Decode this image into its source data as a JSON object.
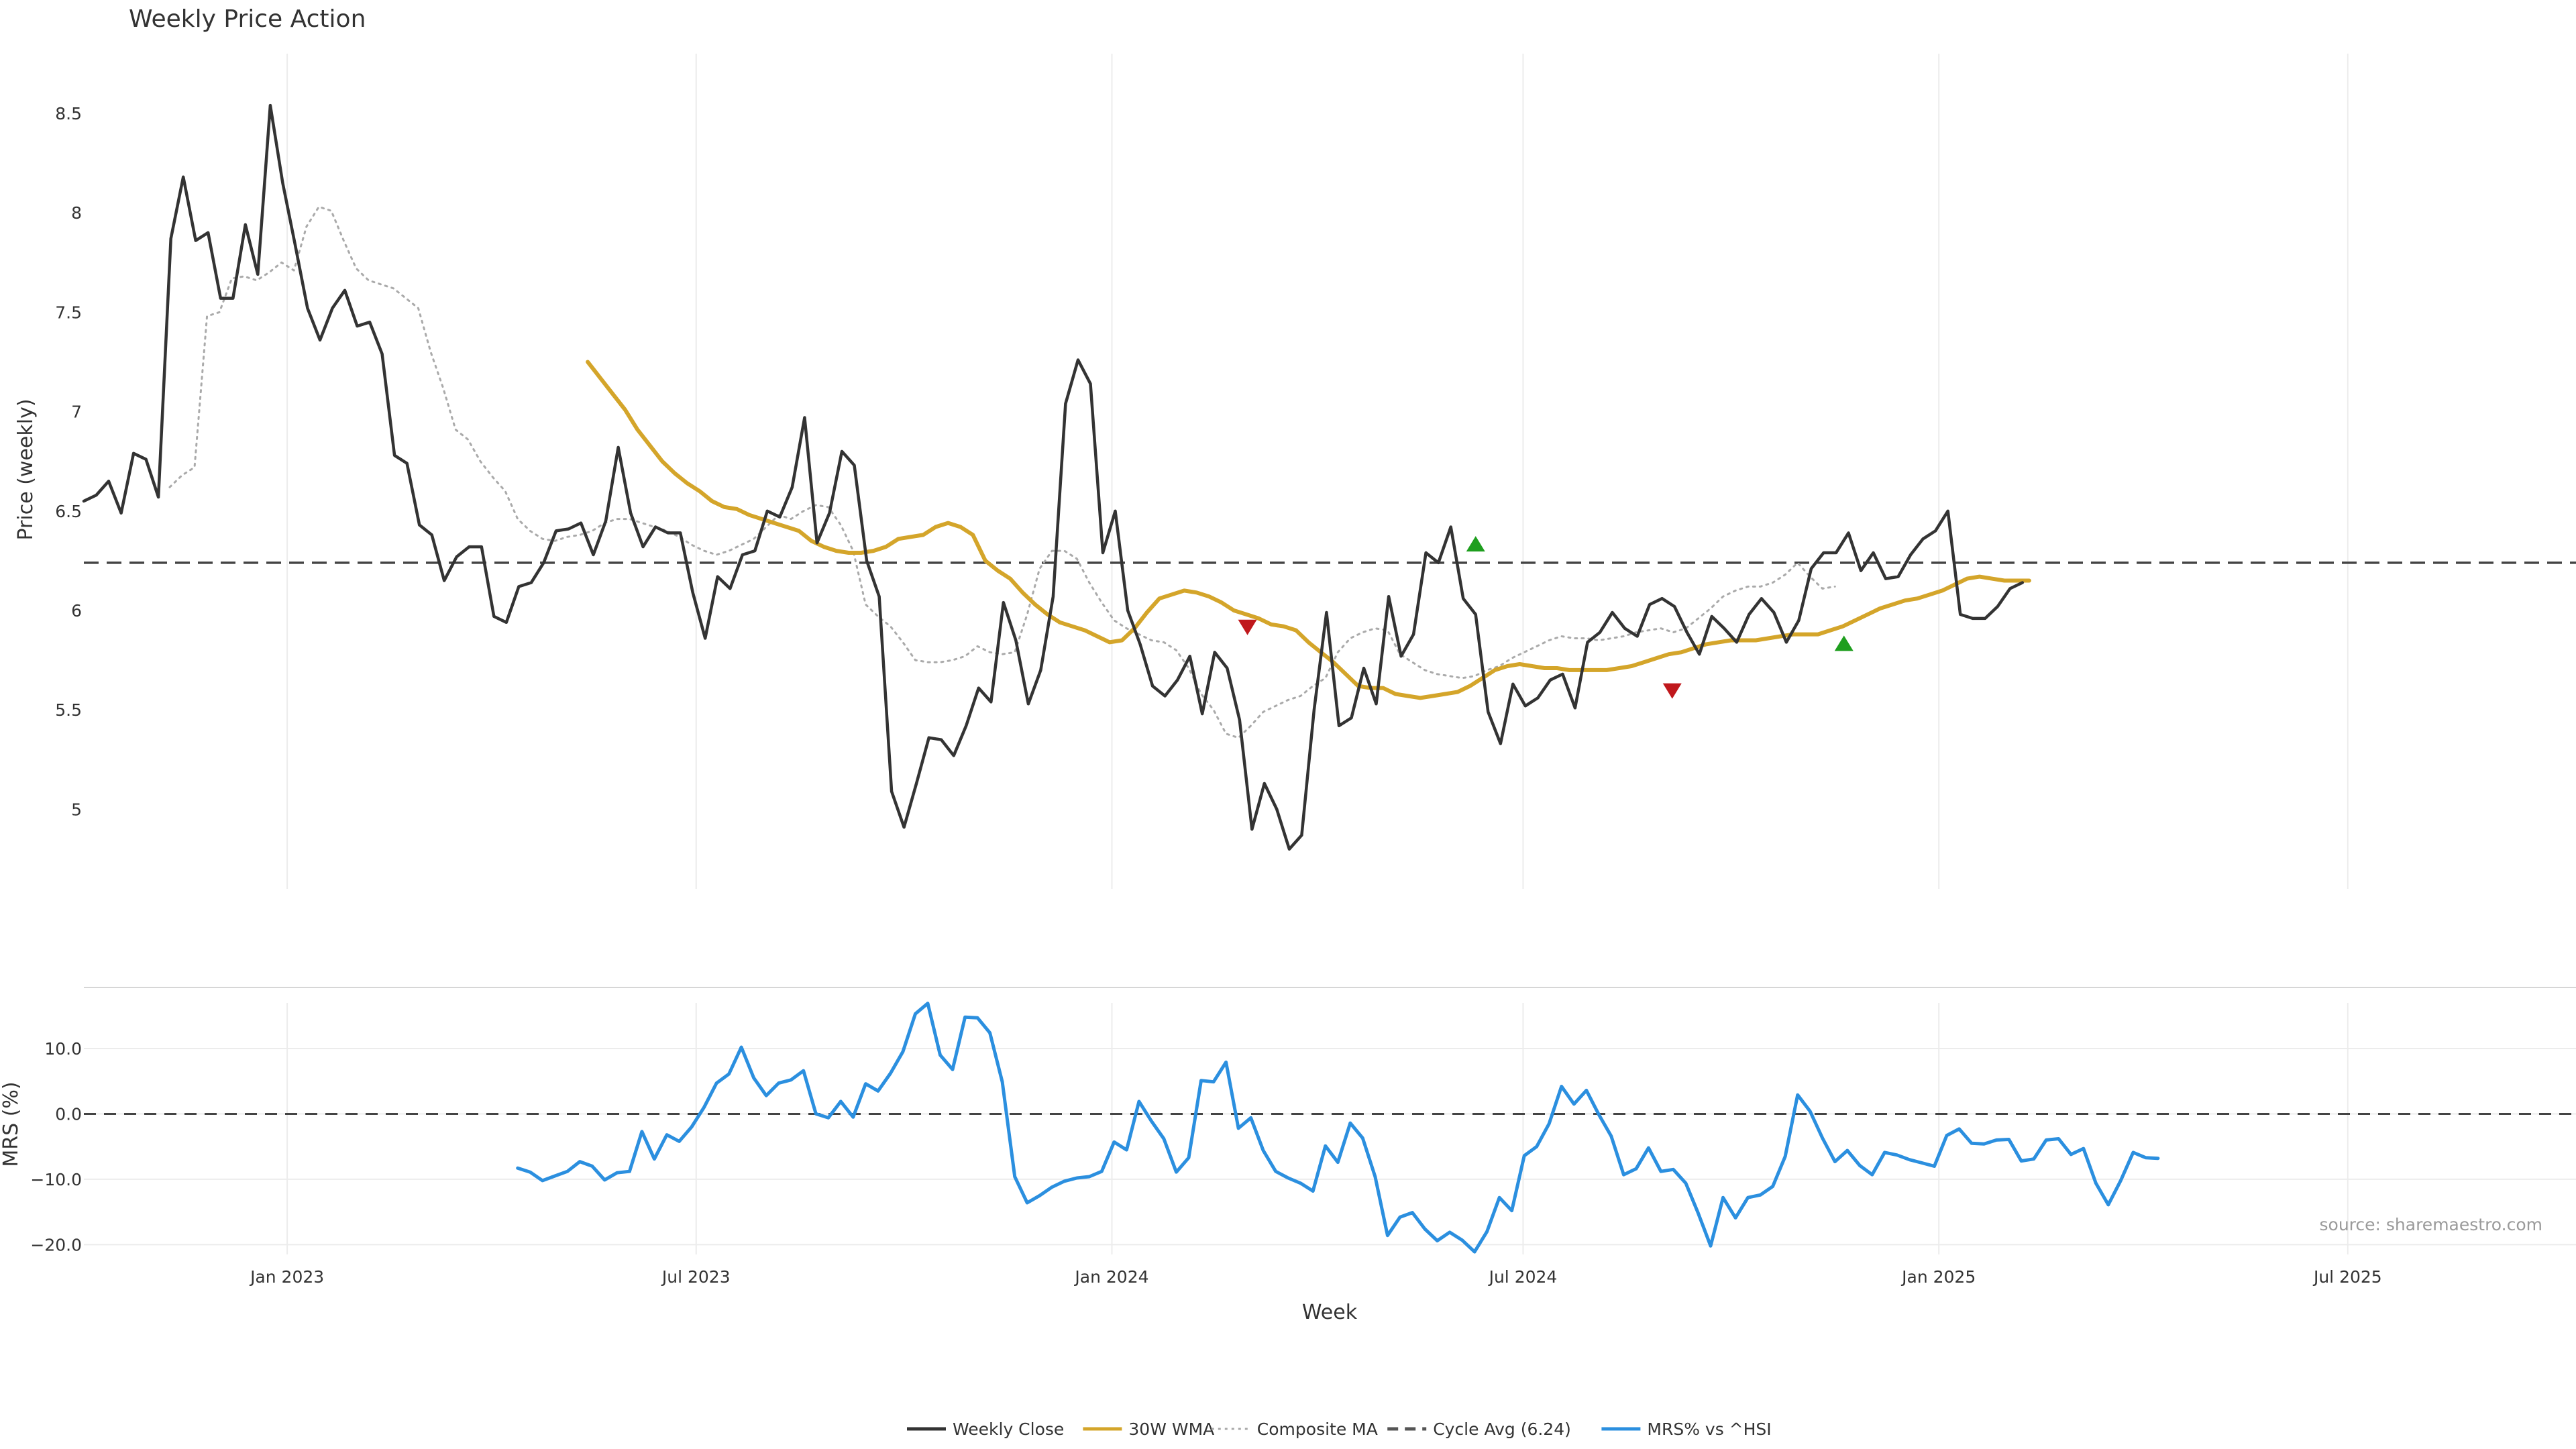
{
  "chart_data": [
    {
      "type": "line",
      "title": "Weekly Price Action",
      "ylabel": "Price (weekly)",
      "ylim": [
        4.6,
        8.8
      ],
      "yticks": [
        5,
        5.5,
        6,
        6.5,
        7,
        7.5,
        8,
        8.5
      ],
      "x_range": [
        "2022-10-03",
        "2025-10-10"
      ],
      "grid": "vertical",
      "reference_line": {
        "name": "Cycle Avg (6.24)",
        "value": 6.24
      },
      "series": [
        {
          "name": "Weekly Close",
          "color": "#333333",
          "start": "2022-10-03",
          "step_days": 5.5,
          "values": [
            6.55,
            6.58,
            6.65,
            6.49,
            6.79,
            6.76,
            6.57,
            7.87,
            8.18,
            7.86,
            7.9,
            7.57,
            7.57,
            7.94,
            7.69,
            8.54,
            8.15,
            7.84,
            7.52,
            7.36,
            7.52,
            7.61,
            7.43,
            7.45,
            7.29,
            6.78,
            6.74,
            6.43,
            6.38,
            6.15,
            6.27,
            6.32,
            6.32,
            5.97,
            5.94,
            6.12,
            6.14,
            6.24,
            6.4,
            6.41,
            6.44,
            6.28,
            6.45,
            6.82,
            6.49,
            6.32,
            6.42,
            6.39,
            6.39,
            6.09,
            5.86,
            6.17,
            6.11,
            6.28,
            6.3,
            6.5,
            6.47,
            6.62,
            6.97,
            6.34,
            6.49,
            6.8,
            6.73,
            6.25,
            6.07,
            5.09,
            4.91,
            5.13,
            5.36,
            5.35,
            5.27,
            5.42,
            5.61,
            5.54,
            6.04,
            5.85,
            5.53,
            5.7,
            6.07,
            7.04,
            7.26,
            7.14,
            6.29,
            6.5,
            6.0,
            5.83,
            5.62,
            5.57,
            5.65,
            5.77,
            5.48,
            5.79,
            5.71,
            5.45,
            4.9,
            5.13,
            5.0,
            4.8,
            4.87,
            5.5,
            5.99,
            5.42,
            5.46,
            5.71,
            5.53,
            6.07,
            5.77,
            5.88,
            6.29,
            6.24,
            6.42,
            6.06,
            5.98,
            5.49,
            5.33,
            5.63,
            5.52,
            5.56,
            5.65,
            5.68,
            5.51,
            5.84,
            5.89,
            5.99,
            5.91,
            5.87,
            6.03,
            6.06,
            6.02,
            5.89,
            5.78,
            5.97,
            5.91,
            5.84,
            5.98,
            6.06,
            5.99,
            5.84,
            5.95,
            6.21,
            6.29,
            6.29,
            6.39,
            6.2,
            6.29,
            6.16,
            6.17,
            6.28,
            6.36,
            6.4,
            6.5,
            5.98,
            5.96,
            5.96,
            6.02,
            6.11,
            6.14
          ]
        },
        {
          "name": "30W WMA",
          "color": "#d4a52a",
          "start": "2023-05-14",
          "step_days": 5.5,
          "values": [
            7.25,
            7.17,
            7.09,
            7.01,
            6.91,
            6.83,
            6.75,
            6.69,
            6.64,
            6.6,
            6.55,
            6.52,
            6.51,
            6.48,
            6.46,
            6.44,
            6.42,
            6.4,
            6.35,
            6.32,
            6.3,
            6.29,
            6.29,
            6.3,
            6.32,
            6.36,
            6.37,
            6.38,
            6.42,
            6.44,
            6.42,
            6.38,
            6.25,
            6.2,
            6.16,
            6.09,
            6.03,
            5.98,
            5.94,
            5.92,
            5.9,
            5.87,
            5.84,
            5.85,
            5.91,
            5.99,
            6.06,
            6.08,
            6.1,
            6.09,
            6.07,
            6.04,
            6.0,
            5.98,
            5.96,
            5.93,
            5.92,
            5.9,
            5.84,
            5.79,
            5.74,
            5.68,
            5.62,
            5.61,
            5.61,
            5.58,
            5.57,
            5.56,
            5.57,
            5.58,
            5.59,
            5.62,
            5.66,
            5.7,
            5.72,
            5.73,
            5.72,
            5.71,
            5.71,
            5.7,
            5.7,
            5.7,
            5.7,
            5.71,
            5.72,
            5.74,
            5.76,
            5.78,
            5.79,
            5.81,
            5.83,
            5.84,
            5.85,
            5.85,
            5.85,
            5.86,
            5.87,
            5.88,
            5.88,
            5.88,
            5.9,
            5.92,
            5.95,
            5.98,
            6.01,
            6.03,
            6.05,
            6.06,
            6.08,
            6.1,
            6.13,
            6.16,
            6.17,
            6.16,
            6.15,
            6.15,
            6.15
          ]
        },
        {
          "name": "Composite MA",
          "color": "#aaaaaa",
          "start": "2022-11-10",
          "step_days": 5.5,
          "values": [
            6.62,
            6.68,
            6.72,
            7.48,
            7.5,
            7.67,
            7.68,
            7.66,
            7.7,
            7.75,
            7.71,
            7.93,
            8.03,
            8.01,
            7.86,
            7.72,
            7.66,
            7.64,
            7.62,
            7.57,
            7.52,
            7.3,
            7.12,
            6.91,
            6.86,
            6.75,
            6.67,
            6.6,
            6.46,
            6.4,
            6.36,
            6.35,
            6.37,
            6.38,
            6.4,
            6.44,
            6.46,
            6.46,
            6.44,
            6.42,
            6.4,
            6.37,
            6.33,
            6.3,
            6.28,
            6.3,
            6.33,
            6.36,
            6.42,
            6.48,
            6.46,
            6.5,
            6.53,
            6.52,
            6.43,
            6.3,
            6.03,
            5.97,
            5.92,
            5.84,
            5.75,
            5.74,
            5.74,
            5.75,
            5.77,
            5.82,
            5.79,
            5.78,
            5.79,
            5.98,
            6.21,
            6.3,
            6.3,
            6.26,
            6.14,
            6.04,
            5.95,
            5.91,
            5.88,
            5.85,
            5.84,
            5.8,
            5.71,
            5.58,
            5.5,
            5.38,
            5.36,
            5.42,
            5.49,
            5.52,
            5.55,
            5.57,
            5.62,
            5.66,
            5.79,
            5.86,
            5.89,
            5.91,
            5.9,
            5.78,
            5.74,
            5.7,
            5.68,
            5.67,
            5.66,
            5.67,
            5.7,
            5.72,
            5.76,
            5.79,
            5.82,
            5.85,
            5.87,
            5.86,
            5.86,
            5.85,
            5.86,
            5.87,
            5.89,
            5.9,
            5.91,
            5.89,
            5.91,
            5.96,
            6.01,
            6.07,
            6.1,
            6.12,
            6.12,
            6.14,
            6.18,
            6.24,
            6.17,
            6.11,
            6.12
          ]
        }
      ],
      "signals": [
        {
          "date": "2024-03-01",
          "value": 5.92,
          "direction": "down",
          "color": "#c0181c"
        },
        {
          "date": "2024-06-10",
          "value": 6.33,
          "direction": "up",
          "color": "#1e9e1e"
        },
        {
          "date": "2024-09-05",
          "value": 5.6,
          "direction": "down",
          "color": "#c0181c"
        },
        {
          "date": "2024-11-20",
          "value": 5.83,
          "direction": "up",
          "color": "#1e9e1e"
        }
      ]
    },
    {
      "type": "line",
      "ylabel": "MRS (%)",
      "xlabel": "Week",
      "ylim": [
        -21.5,
        18
      ],
      "yticks": [
        "10.0",
        "0.0",
        "−10.0",
        "−20.0"
      ],
      "ytick_values": [
        10,
        0,
        -10,
        -20
      ],
      "x_range": [
        "2022-10-03",
        "2025-10-10"
      ],
      "xticks": [
        "Jan 2023",
        "Jul 2023",
        "Jan 2024",
        "Jul 2024",
        "Jan 2025",
        "Jul 2025"
      ],
      "xtick_dates": [
        "2023-01-01",
        "2023-07-01",
        "2024-01-01",
        "2024-07-01",
        "2025-01-01",
        "2025-07-01"
      ],
      "reference_line": {
        "value": 0
      },
      "series": [
        {
          "name": "MRS% vs ^HSI",
          "color": "#2b8fdf",
          "start": "2023-04-13",
          "step_days": 5.5,
          "values": [
            -8.3,
            -8.9,
            -10.2,
            -9.5,
            -8.8,
            -7.3,
            -8.0,
            -10.1,
            -9.0,
            -8.8,
            -2.7,
            -6.9,
            -3.2,
            -4.2,
            -2.0,
            1.0,
            4.7,
            6.1,
            10.2,
            5.5,
            2.8,
            4.7,
            5.2,
            6.6,
            0.0,
            -0.6,
            1.9,
            -0.5,
            4.6,
            3.5,
            6.2,
            9.5,
            15.3,
            16.9,
            9.0,
            6.8,
            14.8,
            14.7,
            12.4,
            4.9,
            -9.6,
            -13.6,
            -12.5,
            -11.2,
            -10.3,
            -9.8,
            -9.6,
            -8.8,
            -4.3,
            -5.5,
            1.9,
            -1.1,
            -3.8,
            -8.9,
            -6.7,
            5.1,
            4.9,
            7.9,
            -2.2,
            -0.6,
            -5.6,
            -8.8,
            -9.8,
            -10.6,
            -11.8,
            -4.9,
            -7.4,
            -1.4,
            -3.7,
            -9.6,
            -18.6,
            -15.8,
            -15.1,
            -17.6,
            -19.4,
            -18.1,
            -19.3,
            -21.1,
            -18.0,
            -12.8,
            -14.8,
            -6.4,
            -5.0,
            -1.5,
            4.2,
            1.5,
            3.6,
            -0.1,
            -3.4,
            -9.3,
            -8.4,
            -5.2,
            -8.8,
            -8.5,
            -10.6,
            -15.2,
            -20.2,
            -12.8,
            -15.9,
            -12.8,
            -12.4,
            -11.1,
            -6.5,
            2.9,
            0.4,
            -3.7,
            -7.3,
            -5.6,
            -7.9,
            -9.3,
            -5.9,
            -6.3,
            -7.0,
            -7.5,
            -8.0,
            -3.3,
            -2.3,
            -4.5,
            -4.6,
            -4.0,
            -3.9,
            -7.2,
            -6.9,
            -4.0,
            -3.8,
            -6.2,
            -5.3,
            -10.6,
            -13.9,
            -10.2,
            -5.9,
            -6.7,
            -6.8
          ]
        }
      ],
      "annotation": "source: sharemaestro.com"
    }
  ],
  "legend": {
    "placement": "bottom-center",
    "items": [
      {
        "label": "Weekly Close",
        "style": "solid",
        "color": "#333333"
      },
      {
        "label": "30W WMA",
        "style": "solid",
        "color": "#d4a52a"
      },
      {
        "label": "Composite MA",
        "style": "dotted",
        "color": "#aaaaaa"
      },
      {
        "label": "Cycle Avg (6.24)",
        "style": "dashed",
        "color": "#555555"
      },
      {
        "label": "MRS% vs ^HSI",
        "style": "solid",
        "color": "#2b8fdf"
      }
    ]
  }
}
